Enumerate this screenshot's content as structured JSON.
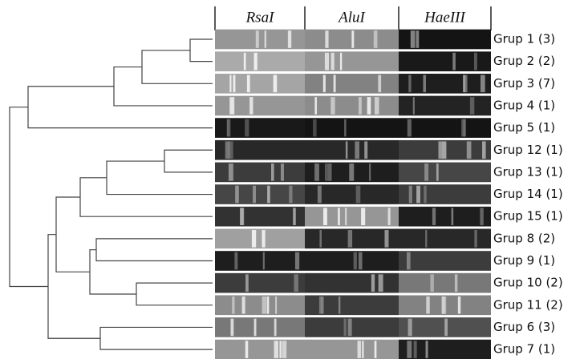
{
  "header": {
    "enzymes": [
      "RsaI",
      "AluI",
      "HaeIII"
    ]
  },
  "groups": [
    "Grup 1 (3)",
    "Grup 2 (2)",
    "Grup 3 (7)",
    "Grup 4 (1)",
    "Grup 5 (1)",
    "Grup 12 (1)",
    "Grup 13 (1)",
    "Grup 14 (1)",
    "Grup 15 (1)",
    "Grup 8 (2)",
    "Grup 9 (1)",
    "Grup 10 (2)",
    "Grup 11 (2)",
    "Grup 6 (3)",
    "Grup 7 (1)"
  ]
}
